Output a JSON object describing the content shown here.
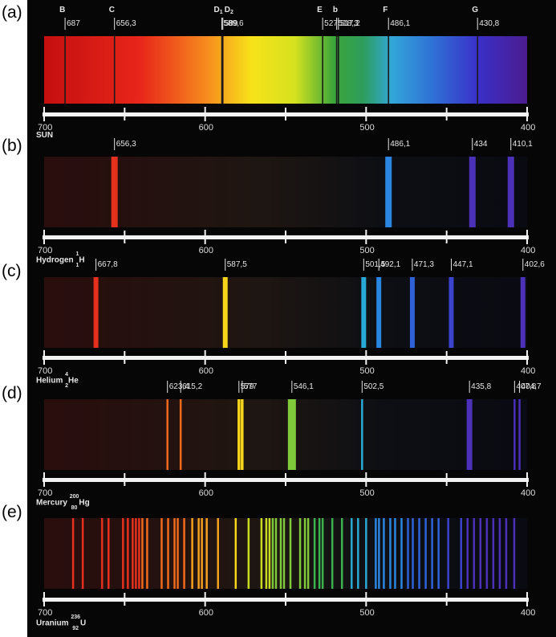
{
  "axis": {
    "ticks": [
      "700",
      "600",
      "500",
      "400"
    ],
    "tick_values": [
      700,
      650,
      600,
      550,
      500,
      450,
      400
    ]
  },
  "colors": {
    "frame": "#060606",
    "axis": "#f2f2f2",
    "text": "#e6e6e6"
  },
  "panels": [
    {
      "id": "a",
      "label": "(a)",
      "name": "SUN",
      "type": "absorption",
      "fraunhofer_letters": [
        {
          "letter": "B",
          "nm": 687
        },
        {
          "letter": "C",
          "nm": 656.3
        },
        {
          "letter": "D1",
          "nm": 589.6
        },
        {
          "letter": "D2",
          "nm": 589
        },
        {
          "letter": "E",
          "nm": 527
        },
        {
          "letter": "b",
          "nm": 517.2
        },
        {
          "letter": "F",
          "nm": 486.1
        },
        {
          "letter": "G",
          "nm": 430.8
        }
      ],
      "line_labels": [
        "687",
        "656,3",
        "589,6",
        "589",
        "527",
        "518,3",
        "517,2",
        "486,1",
        "430,8"
      ],
      "lines_nm": [
        687,
        656.3,
        589.6,
        589,
        527,
        518.3,
        517.2,
        486.1,
        430.8
      ]
    },
    {
      "id": "b",
      "label": "(b)",
      "name": "Hydrogen",
      "isotope": {
        "mass": "1",
        "atomic": "1",
        "symbol": "H"
      },
      "type": "emission",
      "line_labels": [
        "656,3",
        "486,1",
        "434",
        "410,1"
      ],
      "lines_nm": [
        656.3,
        486.1,
        434,
        410.1
      ]
    },
    {
      "id": "c",
      "label": "(c)",
      "name": "Helium",
      "isotope": {
        "mass": "4",
        "atomic": "2",
        "symbol": "He"
      },
      "type": "emission",
      "line_labels": [
        "667,8",
        "587,5",
        "501,5",
        "492,1",
        "471,3",
        "447,1",
        "402,6"
      ],
      "lines_nm": [
        667.8,
        587.5,
        501.5,
        492.1,
        471.3,
        447.1,
        402.6
      ]
    },
    {
      "id": "d",
      "label": "(d)",
      "name": "Mercury",
      "isotope": {
        "mass": "200",
        "atomic": "80",
        "symbol": "Hg"
      },
      "type": "emission",
      "line_labels": [
        "623,4",
        "615,2",
        "579",
        "577",
        "546,1",
        "502,5",
        "435,8",
        "407,8",
        "404,7"
      ],
      "lines_nm": [
        623.4,
        615.2,
        579,
        577,
        546.1,
        502.5,
        435.8,
        407.8,
        404.7
      ]
    },
    {
      "id": "e",
      "label": "(e)",
      "name": "Uranium",
      "isotope": {
        "mass": "236",
        "atomic": "92",
        "symbol": "U"
      },
      "type": "emission",
      "line_labels": [],
      "lines_nm": [
        682,
        676,
        664,
        660,
        651,
        648,
        645,
        643,
        641,
        639,
        636,
        627,
        623,
        619,
        617,
        613,
        608,
        604,
        602,
        599,
        592,
        581,
        573,
        565,
        562,
        560,
        558,
        556,
        553,
        551,
        547,
        541,
        538,
        536,
        532,
        529,
        527,
        521,
        515,
        509,
        505,
        500,
        494,
        492,
        489,
        485,
        482,
        478,
        474,
        471,
        467,
        463,
        459,
        455,
        449,
        441,
        437,
        433,
        429,
        425,
        421,
        417,
        413,
        408
      ]
    }
  ]
}
